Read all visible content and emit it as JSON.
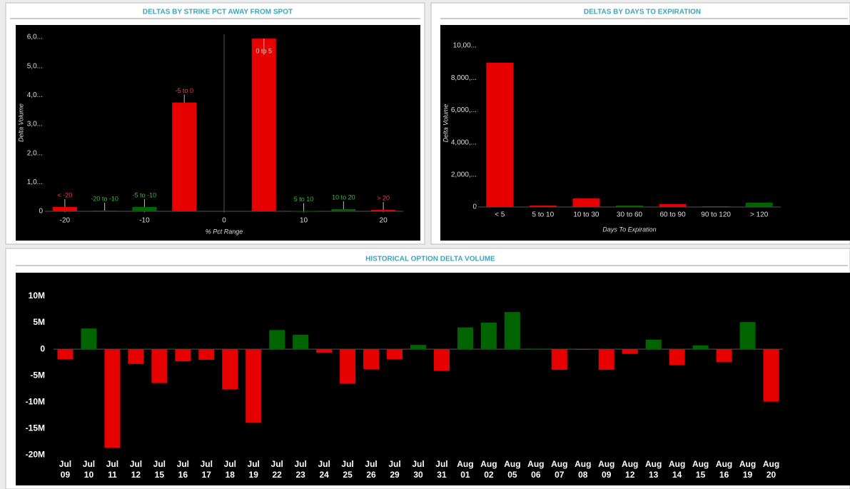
{
  "chart_data": [
    {
      "type": "bar",
      "title": "DELTAS BY STRIKE PCT AWAY FROM SPOT",
      "x_label": "% Pct Range",
      "y_label": "Delta Volume",
      "x": [
        -20,
        -15,
        -10,
        -5,
        5,
        10,
        15,
        20
      ],
      "labels": [
        "< -20",
        "-20 to -10",
        "-5 to -10",
        "-5 to 0",
        "0 to 5",
        "5 to 10",
        "10 to 20",
        "> 20"
      ],
      "values": [
        150,
        25,
        150,
        3750,
        5950,
        10,
        75,
        50
      ],
      "colors": [
        "#e60000",
        "#006400",
        "#006400",
        "#e60000",
        "#e60000",
        "#006400",
        "#006400",
        "#e60000"
      ],
      "xlim": [
        -22.5,
        22.5
      ],
      "xticks": [
        -20,
        -10,
        0,
        10,
        20
      ],
      "ylim": [
        0,
        6100
      ],
      "yticks": [
        0,
        {
          "value": 1000,
          "label": "1,0..."
        },
        {
          "value": 2000,
          "label": "2,0..."
        },
        {
          "value": 3000,
          "label": "3,0..."
        },
        {
          "value": 4000,
          "label": "4,0..."
        },
        {
          "value": 5000,
          "label": "5,0..."
        },
        {
          "value": 6000,
          "label": "6,0..."
        }
      ]
    },
    {
      "type": "bar",
      "title": "DELTAS BY DAYS TO EXPIRATION",
      "x_label": "Days To Expiration",
      "y_label": "Delta Volume",
      "categories": [
        "< 5",
        "5 to 10",
        "10 to 30",
        "30 to 60",
        "60 to 90",
        "90 to 120",
        "> 120"
      ],
      "values": [
        8950,
        90,
        530,
        90,
        180,
        45,
        270
      ],
      "colors": [
        "#e60000",
        "#e60000",
        "#e60000",
        "#006400",
        "#e60000",
        "#e60000",
        "#006400"
      ],
      "ylim": [
        0,
        10400
      ],
      "yticks": [
        0,
        {
          "value": 2000,
          "label": "2,000,..."
        },
        {
          "value": 4000,
          "label": "4,000,..."
        },
        {
          "value": 6000,
          "label": "6,000,..."
        },
        {
          "value": 8000,
          "label": "8,000,..."
        },
        {
          "value": 10000,
          "label": "10,00..."
        }
      ]
    },
    {
      "type": "bar",
      "title": "HISTORICAL OPTION DELTA VOLUME",
      "categories": [
        "Jul 09",
        "Jul 10",
        "Jul 11",
        "Jul 12",
        "Jul 15",
        "Jul 16",
        "Jul 17",
        "Jul 18",
        "Jul 19",
        "Jul 22",
        "Jul 23",
        "Jul 24",
        "Jul 25",
        "Jul 26",
        "Jul 29",
        "Jul 30",
        "Jul 31",
        "Aug 01",
        "Aug 02",
        "Aug 05",
        "Aug 06",
        "Aug 07",
        "Aug 08",
        "Aug 09",
        "Aug 12",
        "Aug 13",
        "Aug 14",
        "Aug 15",
        "Aug 16",
        "Aug 19",
        "Aug 20"
      ],
      "values": [
        -1900000,
        3900000,
        -18600000,
        -2800000,
        -6400000,
        -2300000,
        -2000000,
        -7600000,
        -13900000,
        3600000,
        2700000,
        -700000,
        -6500000,
        -3800000,
        -1900000,
        800000,
        -4100000,
        4100000,
        5000000,
        7000000,
        100000,
        -3900000,
        -100000,
        -3900000,
        -900000,
        1800000,
        -3000000,
        700000,
        -2400000,
        5100000,
        -9900000
      ],
      "positive_color": "#006400",
      "negative_color": "#e60000",
      "ylim": [
        -21000000,
        12000000
      ],
      "yticks": [
        {
          "value": -20000000,
          "label": "-20M"
        },
        {
          "value": -15000000,
          "label": "-15M"
        },
        {
          "value": -10000000,
          "label": "-10M"
        },
        {
          "value": -5000000,
          "label": "-5M"
        },
        0,
        {
          "value": 5000000,
          "label": "5M"
        },
        {
          "value": 10000000,
          "label": "10M"
        }
      ]
    }
  ]
}
